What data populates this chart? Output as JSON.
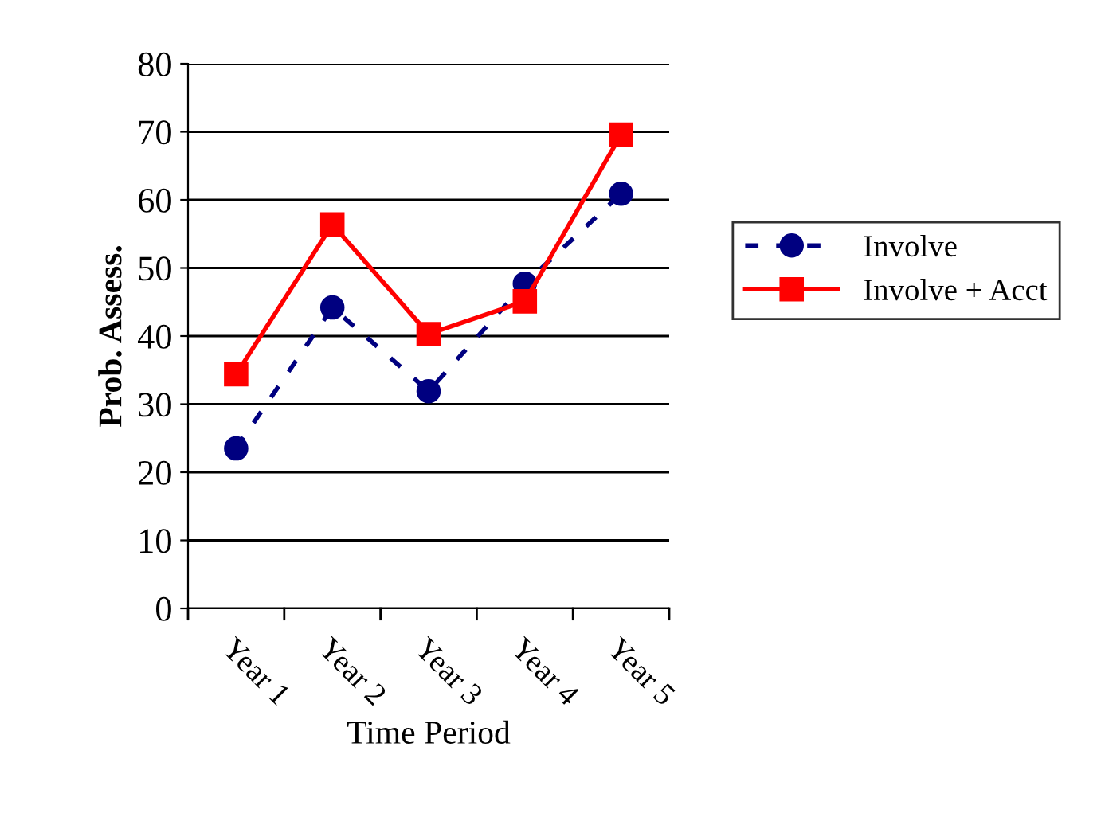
{
  "chart_data": {
    "type": "line",
    "xlabel": "Time Period",
    "ylabel": "Prob. Assess.",
    "categories": [
      "Year 1",
      "Year 2",
      "Year 3",
      "Year 4",
      "Year 5"
    ],
    "series": [
      {
        "name": "Involve",
        "color": "#000080",
        "marker": "circle",
        "line_style": "dashed",
        "values": [
          23.5,
          44.2,
          31.9,
          47.7,
          60.9
        ]
      },
      {
        "name": "Involve + Acct",
        "color": "#ff0000",
        "marker": "square",
        "line_style": "solid",
        "values": [
          34.4,
          56.4,
          40.3,
          45.1,
          69.6
        ]
      }
    ],
    "ylim": [
      0,
      80
    ],
    "yticks": [
      0,
      10,
      20,
      30,
      40,
      50,
      60,
      70,
      80
    ],
    "grid": "y",
    "legend": "right"
  }
}
